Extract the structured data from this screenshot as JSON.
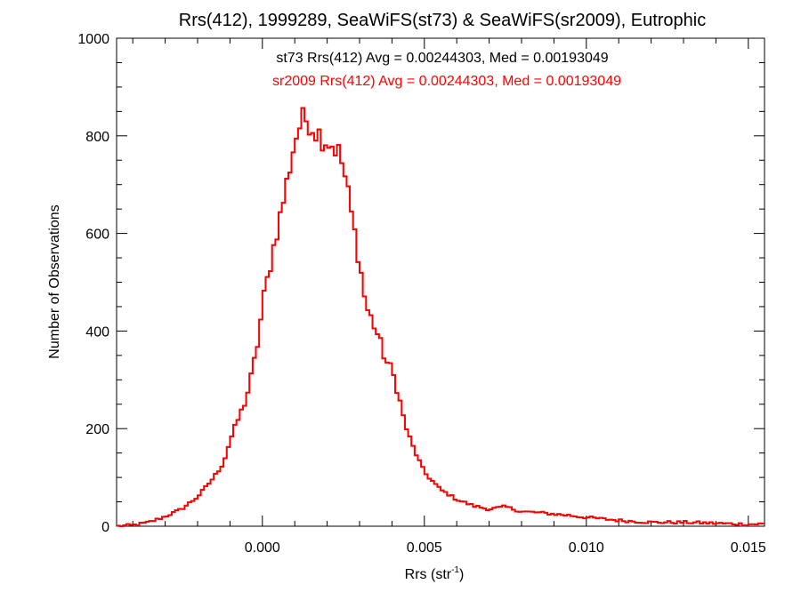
{
  "colors": {
    "background": "#ffffff",
    "axis": "#000000",
    "series_st73": "#000000",
    "series_sr2009": "#ff0000"
  },
  "chart_data": {
    "type": "histogram",
    "title": "Rrs(412), 1999289, SeaWiFS(st73) & SeaWiFS(sr2009), Eutrophic",
    "xlabel_base": "Rrs (str",
    "xlabel_sup": "-1",
    "xlabel_tail": ")",
    "ylabel": "Number of Observations",
    "xlim": [
      -0.0045,
      0.0155
    ],
    "ylim": [
      0,
      1000
    ],
    "xticks": [
      0.0,
      0.005,
      0.01,
      0.015
    ],
    "xtick_labels": [
      "0.000",
      "0.005",
      "0.010",
      "0.015"
    ],
    "yticks": [
      0,
      200,
      400,
      600,
      800,
      1000
    ],
    "ytick_labels": [
      "0",
      "200",
      "400",
      "600",
      "800",
      "1000"
    ],
    "bin_width": 0.0001,
    "annotations": [
      {
        "text": "st73 Rrs(412) Avg = 0.00244303, Med = 0.00193049",
        "color": "#000000"
      },
      {
        "text": "sr2009 Rrs(412) Avg = 0.00244303, Med = 0.00193049",
        "color": "#ff0000"
      }
    ],
    "series": [
      {
        "name": "st73",
        "color": "#000000",
        "x": [
          -0.0045,
          -0.004,
          -0.0035,
          -0.003,
          -0.0025,
          -0.002,
          -0.0015,
          -0.0012,
          -0.001,
          -0.0008,
          -0.0005,
          -0.0003,
          -0.0001,
          0.0,
          0.0002,
          0.0004,
          0.0006,
          0.0008,
          0.001,
          0.0012,
          0.0014,
          0.0016,
          0.0018,
          0.002,
          0.0022,
          0.0024,
          0.0026,
          0.0028,
          0.003,
          0.0032,
          0.0034,
          0.0036,
          0.0038,
          0.004,
          0.0042,
          0.0044,
          0.0046,
          0.0048,
          0.005,
          0.0055,
          0.006,
          0.0065,
          0.007,
          0.0075,
          0.008,
          0.0085,
          0.009,
          0.0095,
          0.01,
          0.0105,
          0.011,
          0.0115,
          0.012,
          0.013,
          0.014,
          0.015,
          0.0155
        ],
        "y": [
          0,
          2,
          8,
          20,
          35,
          60,
          100,
          130,
          175,
          210,
          260,
          320,
          390,
          455,
          520,
          590,
          650,
          720,
          790,
          830,
          835,
          815,
          800,
          790,
          780,
          760,
          700,
          620,
          540,
          450,
          420,
          385,
          340,
          320,
          270,
          210,
          170,
          140,
          110,
          75,
          55,
          42,
          35,
          40,
          30,
          28,
          25,
          22,
          18,
          15,
          12,
          10,
          8,
          8,
          6,
          4,
          5
        ]
      },
      {
        "name": "sr2009",
        "color": "#ff0000",
        "x": [
          -0.0045,
          -0.004,
          -0.0035,
          -0.003,
          -0.0025,
          -0.002,
          -0.0015,
          -0.0012,
          -0.001,
          -0.0008,
          -0.0005,
          -0.0003,
          -0.0001,
          0.0,
          0.0002,
          0.0004,
          0.0006,
          0.0008,
          0.001,
          0.0012,
          0.0014,
          0.0016,
          0.0018,
          0.002,
          0.0022,
          0.0024,
          0.0026,
          0.0028,
          0.003,
          0.0032,
          0.0034,
          0.0036,
          0.0038,
          0.004,
          0.0042,
          0.0044,
          0.0046,
          0.0048,
          0.005,
          0.0055,
          0.006,
          0.0065,
          0.007,
          0.0075,
          0.008,
          0.0085,
          0.009,
          0.0095,
          0.01,
          0.0105,
          0.011,
          0.0115,
          0.012,
          0.013,
          0.014,
          0.015,
          0.0155
        ],
        "y": [
          0,
          2,
          8,
          20,
          35,
          60,
          100,
          130,
          175,
          210,
          260,
          320,
          390,
          455,
          520,
          590,
          650,
          720,
          790,
          830,
          835,
          815,
          800,
          790,
          780,
          760,
          700,
          620,
          540,
          450,
          420,
          385,
          340,
          320,
          270,
          210,
          170,
          140,
          110,
          75,
          55,
          42,
          35,
          40,
          30,
          28,
          25,
          22,
          18,
          15,
          12,
          10,
          8,
          8,
          6,
          4,
          5
        ]
      }
    ]
  }
}
